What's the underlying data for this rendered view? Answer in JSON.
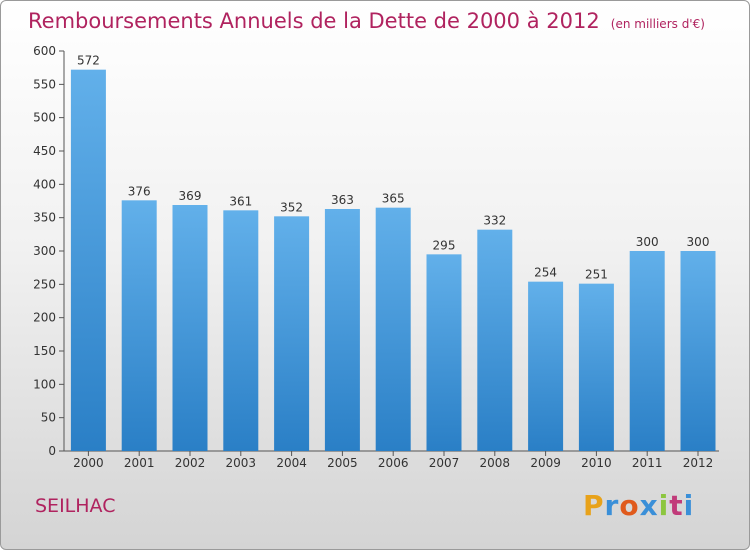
{
  "header": {
    "title": "Remboursements Annuels de la Dette de 2000 à 2012",
    "unit": "(en milliers d'€)"
  },
  "footer": {
    "commune": "SEILHAC",
    "brand_letters": [
      "P",
      "r",
      "o",
      "x",
      "i",
      "t",
      "i"
    ],
    "brand_colors": [
      "#e8a21a",
      "#3a8fd8",
      "#e05a1c",
      "#3a8fd8",
      "#8cc63f",
      "#c13b7a",
      "#3a8fd8"
    ]
  },
  "colors": {
    "title": "#b0235f",
    "bar_light": "#62b0ea",
    "bar_dark": "#2a7fc6"
  },
  "chart_data": {
    "type": "bar",
    "categories": [
      "2000",
      "2001",
      "2002",
      "2003",
      "2004",
      "2005",
      "2006",
      "2007",
      "2008",
      "2009",
      "2010",
      "2011",
      "2012"
    ],
    "values": [
      572,
      376,
      369,
      361,
      352,
      363,
      365,
      295,
      332,
      254,
      251,
      300,
      300
    ],
    "value_labels": [
      "572",
      "376",
      "369",
      "361",
      "352",
      "363",
      "365",
      "295",
      "332",
      "254",
      "251",
      "300",
      "300"
    ],
    "y_ticks": [
      "0",
      "50",
      "100",
      "150",
      "200",
      "250",
      "300",
      "350",
      "400",
      "450",
      "500",
      "550",
      "600"
    ],
    "ylim": [
      0,
      600
    ],
    "grid": false,
    "legend": false
  }
}
